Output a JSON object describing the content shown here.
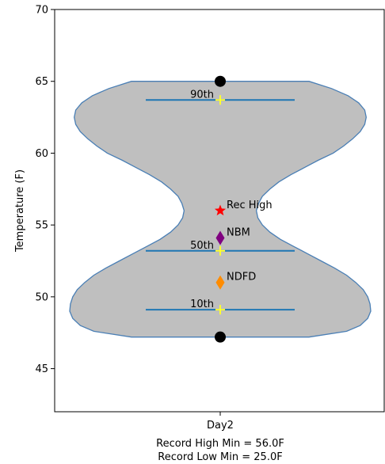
{
  "chart_data": {
    "type": "violin",
    "category": "Day2",
    "ylabel": "Temperature (F)",
    "ylim": [
      42,
      70
    ],
    "yticks": [
      45,
      50,
      55,
      60,
      65,
      70
    ],
    "grid": false,
    "violin": {
      "min": 47.2,
      "max": 65.0,
      "profile": [
        [
          47.2,
          0.59
        ],
        [
          47.6,
          0.84
        ],
        [
          48.0,
          0.93
        ],
        [
          48.5,
          0.98
        ],
        [
          49.0,
          1.0
        ],
        [
          49.5,
          0.995
        ],
        [
          50.0,
          0.98
        ],
        [
          50.5,
          0.95
        ],
        [
          51.0,
          0.9
        ],
        [
          51.5,
          0.84
        ],
        [
          52.0,
          0.76
        ],
        [
          52.5,
          0.67
        ],
        [
          53.0,
          0.58
        ],
        [
          53.5,
          0.49
        ],
        [
          54.0,
          0.4
        ],
        [
          54.5,
          0.33
        ],
        [
          55.0,
          0.28
        ],
        [
          55.5,
          0.25
        ],
        [
          56.0,
          0.24
        ],
        [
          56.5,
          0.255
        ],
        [
          57.0,
          0.28
        ],
        [
          57.5,
          0.33
        ],
        [
          58.0,
          0.39
        ],
        [
          58.5,
          0.47
        ],
        [
          59.0,
          0.56
        ],
        [
          59.5,
          0.65
        ],
        [
          60.0,
          0.75
        ],
        [
          60.5,
          0.82
        ],
        [
          61.0,
          0.88
        ],
        [
          61.5,
          0.93
        ],
        [
          62.0,
          0.96
        ],
        [
          62.5,
          0.97
        ],
        [
          63.0,
          0.96
        ],
        [
          63.5,
          0.92
        ],
        [
          64.0,
          0.85
        ],
        [
          64.5,
          0.74
        ],
        [
          65.0,
          0.59
        ]
      ],
      "fill_color": "#bfbfbf",
      "edge_color": "#4a7fb5"
    },
    "percentile_lines": [
      {
        "label": "10th",
        "value": 49.1
      },
      {
        "label": "50th",
        "value": 53.2
      },
      {
        "label": "90th",
        "value": 63.7
      }
    ],
    "extremes": [
      {
        "name": "max",
        "value": 65.0
      },
      {
        "name": "min",
        "value": 47.2
      }
    ],
    "markers": [
      {
        "label": "Rec High",
        "value": 56.0,
        "shape": "star",
        "color": "#ff0000"
      },
      {
        "label": "NBM",
        "value": 54.1,
        "shape": "diamond",
        "color": "#800080"
      },
      {
        "label": "NDFD",
        "value": 51.0,
        "shape": "diamond",
        "color": "#ff8c00"
      }
    ],
    "percentile_marker_color": "#ffff33",
    "line_color": "#1f77b4",
    "footer_lines": [
      "Record High Min = 56.0F",
      "Record Low Min = 25.0F"
    ]
  }
}
